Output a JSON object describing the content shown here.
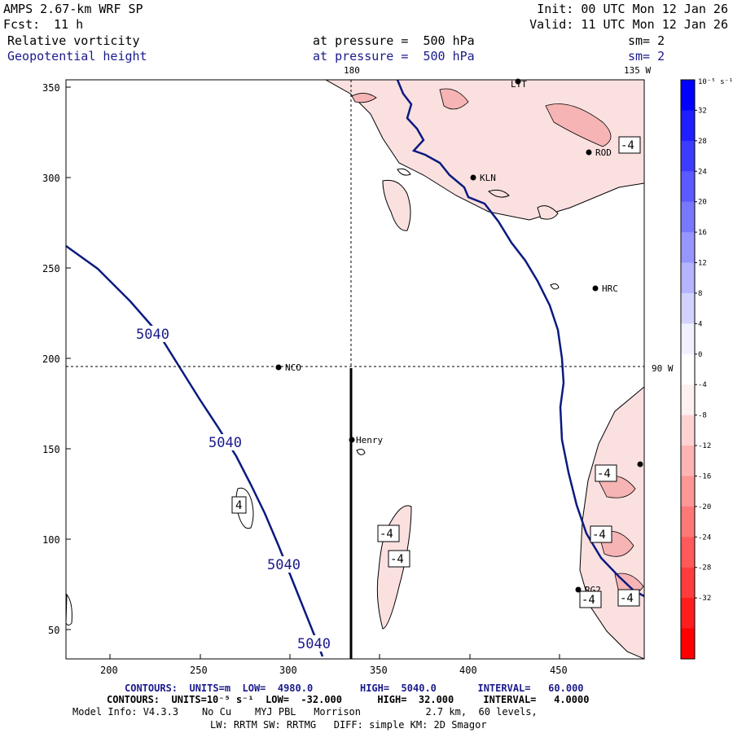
{
  "header": {
    "model": "AMPS 2.67-km WRF SP",
    "fcst_label": "Fcst:",
    "fcst_value": "11 h",
    "init": "Init: 00 UTC Mon 12 Jan 26",
    "valid": "Valid: 11 UTC Mon 12 Jan 26",
    "field1_name": "Relative vorticity",
    "field1_level": "at pressure =  500 hPa",
    "field1_smooth": "sm= 2",
    "field2_name": "Geopotential height",
    "field2_level": "at pressure =  500 hPa",
    "field2_smooth": "sm= 2"
  },
  "map": {
    "lon_label_180": "180",
    "lon_label_135w": "135 W",
    "lon_label_90w": "90 W",
    "x_ticks": [
      "200",
      "250",
      "300",
      "350",
      "400",
      "450"
    ],
    "y_ticks": [
      "350",
      "300",
      "250",
      "200",
      "150",
      "100",
      "50"
    ],
    "stations": [
      {
        "id": "LYT",
        "label": "LYT"
      },
      {
        "id": "ROD",
        "label": "ROD"
      },
      {
        "id": "KLN",
        "label": "KLN"
      },
      {
        "id": "HRC",
        "label": "HRC"
      },
      {
        "id": "NCO",
        "label": "NCO"
      },
      {
        "id": "Henry",
        "label": "Henry"
      },
      {
        "id": "RG2",
        "label": "RG2"
      }
    ],
    "height_labels": [
      "5040",
      "5040",
      "5040",
      "5040"
    ],
    "vorticity_labels": [
      "4",
      "-4",
      "-4",
      "-4",
      "-4",
      "-4",
      "-4",
      "-4"
    ]
  },
  "colorbar": {
    "unit": "10⁻⁵ s⁻¹",
    "labels": [
      "32",
      "28",
      "24",
      "20",
      "16",
      "12",
      "8",
      "4",
      "0",
      "-4",
      "-8",
      "-12",
      "-16",
      "-20",
      "-24",
      "-28",
      "-32"
    ],
    "colors": [
      "#0000ff",
      "#1e1eff",
      "#3c3cff",
      "#5a5aff",
      "#7878ff",
      "#9696ff",
      "#b4b4ff",
      "#d2d2ff",
      "#f0f0ff",
      "#ffffff",
      "#fff0f0",
      "#ffd2d2",
      "#ffb4b4",
      "#ff9696",
      "#ff7878",
      "#ff5a5a",
      "#ff3c3c",
      "#ff1e1e",
      "#ff0000"
    ]
  },
  "footer": {
    "contours1": "CONTOURS:  UNITS=m  LOW=  4980.0        HIGH=  5040.0       INTERVAL=   60.000",
    "contours2": "CONTOURS:  UNITS=10⁻⁵ s⁻¹  LOW=  -32.000      HIGH=  32.000     INTERVAL=   4.0000",
    "model_info": "Model Info: V4.3.3    No Cu    MYJ PBL   Morrison           2.7 km,  60 levels,",
    "physics": "LW: RRTM SW: RRTMG   DIFF: simple KM: 2D Smagor"
  }
}
